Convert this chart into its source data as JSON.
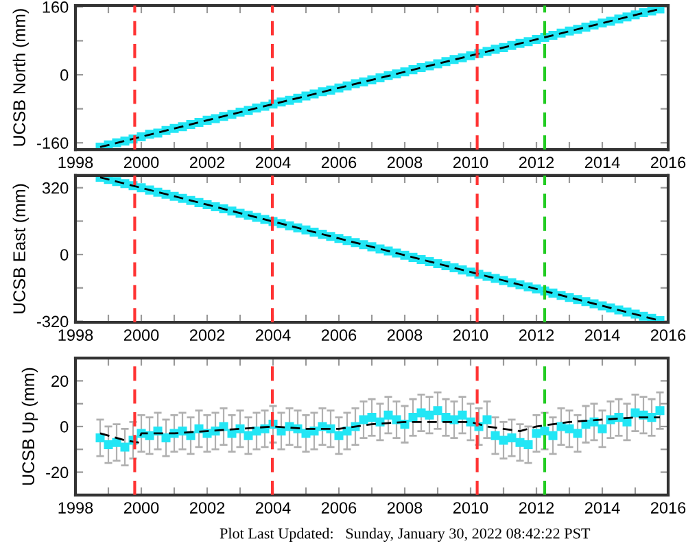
{
  "chart_data": [
    {
      "type": "scatter",
      "ylabel": "UCSB North (mm)",
      "xlim": [
        1998,
        2016
      ],
      "ylim": [
        -176,
        163
      ],
      "xticks": [
        1998,
        {
          "value": 1999,
          "label": null
        },
        2000,
        {
          "value": 2001,
          "label": null
        },
        2002,
        {
          "value": 2003,
          "label": null
        },
        2004,
        {
          "value": 2005,
          "label": null
        },
        2006,
        {
          "value": 2007,
          "label": null
        },
        2008,
        {
          "value": 2009,
          "label": null
        },
        2010,
        {
          "value": 2011,
          "label": null
        },
        2012,
        {
          "value": 2013,
          "label": null
        },
        2014,
        {
          "value": 2015,
          "label": null
        },
        2016
      ],
      "yticks": [
        -160,
        {
          "value": -80,
          "label": null
        },
        0,
        {
          "value": 80,
          "label": null
        },
        160
      ],
      "ref_lines": [
        {
          "axis": "x",
          "value": 1999.8,
          "color": "#ff3333",
          "line_style": "dashed"
        },
        {
          "axis": "x",
          "value": 2003.98,
          "color": "#ff3333",
          "line_style": "dashed"
        },
        {
          "axis": "x",
          "value": 2010.2,
          "color": "#ff3333",
          "line_style": "dashed"
        },
        {
          "axis": "x",
          "value": 2012.25,
          "color": "#22cc22",
          "line_style": "dashed"
        }
      ],
      "series": [
        {
          "type": "scatter",
          "color": "#22e6f5",
          "marker": "square",
          "x": [
            1998.75,
            1999.0,
            1999.25,
            1999.5,
            1999.75,
            2000.0,
            2000.25,
            2000.5,
            2000.75,
            2001.0,
            2001.25,
            2001.5,
            2001.75,
            2002.0,
            2002.25,
            2002.5,
            2002.75,
            2003.0,
            2003.25,
            2003.5,
            2003.75,
            2004.0,
            2004.25,
            2004.5,
            2004.75,
            2005.0,
            2005.25,
            2005.5,
            2005.75,
            2006.0,
            2006.25,
            2006.5,
            2006.75,
            2007.0,
            2007.25,
            2007.5,
            2007.75,
            2008.0,
            2008.25,
            2008.5,
            2008.75,
            2009.0,
            2009.25,
            2009.5,
            2009.75,
            2010.0,
            2010.25,
            2010.5,
            2010.75,
            2011.0,
            2011.25,
            2011.5,
            2011.75,
            2012.0,
            2012.25,
            2012.5,
            2012.75,
            2013.0,
            2013.25,
            2013.5,
            2013.75,
            2014.0,
            2014.25,
            2014.5,
            2014.75,
            2015.0,
            2015.25,
            2015.5,
            2015.75
          ],
          "values": [
            -170,
            -165,
            -160,
            -156,
            -151,
            -146,
            -140,
            -137,
            -131,
            -126,
            -122,
            -117,
            -112,
            -107,
            -103,
            -98,
            -93,
            -88,
            -84,
            -78,
            -74,
            -69,
            -64,
            -60,
            -55,
            -50,
            -45,
            -40,
            -36,
            -31,
            -26,
            -21,
            -17,
            -12,
            -7,
            -2,
            2,
            7,
            12,
            17,
            21,
            26,
            31,
            36,
            40,
            45,
            50,
            55,
            60,
            64,
            69,
            74,
            78,
            83,
            88,
            93,
            98,
            103,
            107,
            112,
            117,
            122,
            126,
            131,
            136,
            141,
            146,
            150,
            155
          ]
        },
        {
          "type": "line",
          "color": "#000000",
          "line_style": "dashed",
          "marker": "none",
          "x": [
            1998.75,
            2002,
            2006,
            2010,
            2015.75
          ],
          "values": [
            -170,
            -107,
            -31,
            45,
            155
          ]
        }
      ]
    },
    {
      "type": "scatter",
      "ylabel": "UCSB East (mm)",
      "xlim": [
        1998,
        2016
      ],
      "ylim": [
        -325,
        379
      ],
      "xticks": [
        1998,
        {
          "value": 1999,
          "label": null
        },
        2000,
        {
          "value": 2001,
          "label": null
        },
        2002,
        {
          "value": 2003,
          "label": null
        },
        2004,
        {
          "value": 2005,
          "label": null
        },
        2006,
        {
          "value": 2007,
          "label": null
        },
        2008,
        {
          "value": 2009,
          "label": null
        },
        2010,
        {
          "value": 2011,
          "label": null
        },
        2012,
        {
          "value": 2013,
          "label": null
        },
        2014,
        {
          "value": 2015,
          "label": null
        },
        2016
      ],
      "yticks": [
        -320,
        {
          "value": -160,
          "label": null
        },
        0,
        {
          "value": 160,
          "label": null
        },
        320
      ],
      "ref_lines": [
        {
          "axis": "x",
          "value": 1999.8,
          "color": "#ff3333",
          "line_style": "dashed"
        },
        {
          "axis": "x",
          "value": 2003.98,
          "color": "#ff3333",
          "line_style": "dashed"
        },
        {
          "axis": "x",
          "value": 2010.2,
          "color": "#ff3333",
          "line_style": "dashed"
        },
        {
          "axis": "x",
          "value": 2012.25,
          "color": "#22cc22",
          "line_style": "dashed"
        }
      ],
      "series": [
        {
          "type": "scatter",
          "color": "#22e6f5",
          "marker": "square",
          "x": [
            1998.75,
            1999.0,
            1999.25,
            1999.5,
            1999.75,
            2000.0,
            2000.25,
            2000.5,
            2000.75,
            2001.0,
            2001.25,
            2001.5,
            2001.75,
            2002.0,
            2002.25,
            2002.5,
            2002.75,
            2003.0,
            2003.25,
            2003.5,
            2003.75,
            2004.0,
            2004.25,
            2004.5,
            2004.75,
            2005.0,
            2005.25,
            2005.5,
            2005.75,
            2006.0,
            2006.25,
            2006.5,
            2006.75,
            2007.0,
            2007.25,
            2007.5,
            2007.75,
            2008.0,
            2008.25,
            2008.5,
            2008.75,
            2009.0,
            2009.25,
            2009.5,
            2009.75,
            2010.0,
            2010.25,
            2010.5,
            2010.75,
            2011.0,
            2011.25,
            2011.5,
            2011.75,
            2012.0,
            2012.25,
            2012.5,
            2012.75,
            2013.0,
            2013.25,
            2013.5,
            2013.75,
            2014.0,
            2014.25,
            2014.5,
            2014.75,
            2015.0,
            2015.25,
            2015.5,
            2015.75
          ],
          "values": [
            370,
            360,
            350,
            340,
            330,
            320,
            309,
            299,
            289,
            279,
            269,
            259,
            249,
            239,
            229,
            219,
            208,
            198,
            188,
            178,
            168,
            158,
            148,
            138,
            128,
            118,
            107,
            97,
            87,
            77,
            67,
            57,
            47,
            37,
            27,
            17,
            7,
            -4,
            -14,
            -24,
            -34,
            -44,
            -54,
            -64,
            -74,
            -84,
            -95,
            -105,
            -115,
            -125,
            -135,
            -145,
            -155,
            -165,
            -175,
            -185,
            -196,
            -206,
            -216,
            -226,
            -236,
            -246,
            -256,
            -266,
            -276,
            -286,
            -296,
            -306,
            -317
          ]
        },
        {
          "type": "line",
          "color": "#000000",
          "line_style": "dashed",
          "marker": "none",
          "x": [
            1998.75,
            2002,
            2006,
            2010,
            2015.75
          ],
          "values": [
            370,
            239,
            77,
            -84,
            -317
          ]
        }
      ]
    },
    {
      "type": "scatter",
      "ylabel": "UCSB Up (mm)",
      "xlim": [
        1998,
        2016
      ],
      "ylim": [
        -30,
        30
      ],
      "xticks": [
        1998,
        {
          "value": 1999,
          "label": null
        },
        2000,
        {
          "value": 2001,
          "label": null
        },
        2002,
        {
          "value": 2003,
          "label": null
        },
        2004,
        {
          "value": 2005,
          "label": null
        },
        2006,
        {
          "value": 2007,
          "label": null
        },
        2008,
        {
          "value": 2009,
          "label": null
        },
        2010,
        {
          "value": 2011,
          "label": null
        },
        2012,
        {
          "value": 2013,
          "label": null
        },
        2014,
        {
          "value": 2015,
          "label": null
        },
        2016
      ],
      "yticks": [
        -20,
        {
          "value": -10,
          "label": null
        },
        0,
        {
          "value": 10,
          "label": null
        },
        20
      ],
      "ref_lines": [
        {
          "axis": "x",
          "value": 1999.8,
          "color": "#ff3333",
          "line_style": "dashed"
        },
        {
          "axis": "x",
          "value": 2003.98,
          "color": "#ff3333",
          "line_style": "dashed"
        },
        {
          "axis": "x",
          "value": 2010.2,
          "color": "#ff3333",
          "line_style": "dashed"
        },
        {
          "axis": "x",
          "value": 2012.25,
          "color": "#22cc22",
          "line_style": "dashed"
        }
      ],
      "annotations": [
        "Plot Last Updated:   Sunday, January 30, 2022 08:42:22 PST"
      ],
      "series": [
        {
          "type": "scatter",
          "color": "#22e6f5",
          "marker": "square",
          "x": [
            1998.75,
            1999.0,
            1999.25,
            1999.5,
            1999.75,
            2000.0,
            2000.25,
            2000.5,
            2000.75,
            2001.0,
            2001.25,
            2001.5,
            2001.75,
            2002.0,
            2002.25,
            2002.5,
            2002.75,
            2003.0,
            2003.25,
            2003.5,
            2003.75,
            2004.0,
            2004.25,
            2004.5,
            2004.75,
            2005.0,
            2005.25,
            2005.5,
            2005.75,
            2006.0,
            2006.25,
            2006.5,
            2006.75,
            2007.0,
            2007.25,
            2007.5,
            2007.75,
            2008.0,
            2008.25,
            2008.5,
            2008.75,
            2009.0,
            2009.25,
            2009.5,
            2009.75,
            2010.0,
            2010.25,
            2010.5,
            2010.75,
            2011.0,
            2011.25,
            2011.5,
            2011.75,
            2012.0,
            2012.25,
            2012.5,
            2012.75,
            2013.0,
            2013.25,
            2013.5,
            2013.75,
            2014.0,
            2014.25,
            2014.5,
            2014.75,
            2015.0,
            2015.25,
            2015.5,
            2015.75
          ],
          "values": [
            -5,
            -8,
            -7,
            -9,
            -6,
            -3,
            -4,
            -2,
            -5,
            -3,
            -2,
            -4,
            -1,
            -3,
            -2,
            0,
            -3,
            -1,
            -4,
            -2,
            -1,
            1,
            -2,
            0,
            -1,
            -3,
            -2,
            0,
            -1,
            -4,
            -2,
            0,
            3,
            4,
            2,
            5,
            3,
            1,
            4,
            6,
            5,
            7,
            4,
            3,
            5,
            2,
            0,
            3,
            -4,
            -6,
            -5,
            -7,
            -8,
            -3,
            -2,
            -4,
            0,
            -1,
            -3,
            1,
            2,
            -1,
            3,
            4,
            2,
            6,
            5,
            4,
            7
          ],
          "errors": [
            8,
            8,
            8,
            8,
            8,
            8,
            8,
            8,
            8,
            8,
            8,
            8,
            8,
            8,
            8,
            8,
            8,
            8,
            8,
            8,
            8,
            8,
            8,
            8,
            8,
            8,
            8,
            8,
            8,
            8,
            8,
            8,
            8,
            8,
            8,
            8,
            8,
            8,
            8,
            8,
            8,
            8,
            8,
            8,
            8,
            8,
            8,
            8,
            8,
            8,
            8,
            8,
            8,
            8,
            8,
            8,
            8,
            8,
            8,
            8,
            8,
            8,
            8,
            8,
            8,
            8,
            8,
            8,
            8
          ]
        },
        {
          "type": "line",
          "color": "#000000",
          "line_style": "dashed",
          "marker": "none",
          "x": [
            1998.75,
            1999.5,
            1999.9,
            2000.0,
            2001,
            2002,
            2003,
            2004,
            2005,
            2006,
            2007,
            2008,
            2009,
            2010,
            2010.5,
            2011,
            2011.5,
            2012,
            2013,
            2014,
            2015,
            2015.75
          ],
          "values": [
            -3,
            -6,
            -7,
            -3,
            -3,
            -2,
            -1,
            0,
            -1,
            -1,
            1,
            2,
            2,
            2,
            0,
            -1,
            -2,
            0,
            2,
            3,
            4,
            4
          ]
        }
      ]
    }
  ]
}
